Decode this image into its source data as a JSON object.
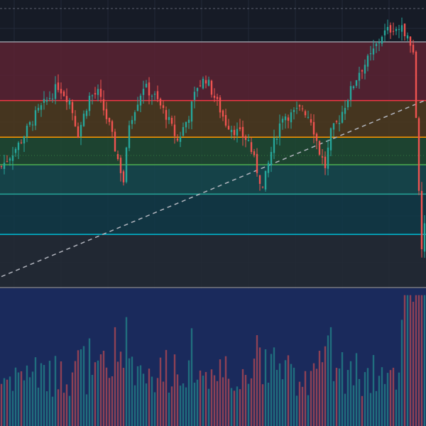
{
  "chart_data": {
    "type": "candlestick",
    "title": "",
    "xlabel": "",
    "ylabel": "",
    "ylim": [
      0,
      100
    ],
    "candle_count": 150,
    "colors": {
      "background": "#161b26",
      "up": "#26a69a",
      "down": "#ef5350",
      "trendline": "#b2b5be",
      "volume_panel": "#1a2a5c"
    },
    "trendline": {
      "start": [
        0,
        36
      ],
      "end": [
        149,
        84
      ],
      "style": "dashed"
    },
    "fib_levels": [
      {
        "value": 100,
        "line_color": "#9598a1",
        "band_color": "#5b2233"
      },
      {
        "value": 84,
        "line_color": "#f23645",
        "band_color": "#4d3a1e"
      },
      {
        "value": 74,
        "line_color": "#ff9800",
        "band_color": "#1e4a33"
      },
      {
        "value": 66.5,
        "line_color": "#4caf50",
        "band_color": "#15494f"
      },
      {
        "value": 58.5,
        "line_color": "#26a69a",
        "band_color": "#103a48"
      },
      {
        "value": 47.5,
        "line_color": "#00bcd4",
        "band_color": "#232a36"
      },
      {
        "value": 33,
        "line_color": "#787b86",
        "band_color": null
      }
    ],
    "close_path": [
      [
        0,
        66
      ],
      [
        6,
        72
      ],
      [
        12,
        80
      ],
      [
        18,
        86
      ],
      [
        20,
        88
      ],
      [
        24,
        84
      ],
      [
        27,
        75
      ],
      [
        31,
        85
      ],
      [
        34,
        86
      ],
      [
        38,
        77
      ],
      [
        43,
        62
      ],
      [
        45,
        78
      ],
      [
        50,
        88
      ],
      [
        54,
        85
      ],
      [
        58,
        80
      ],
      [
        62,
        73
      ],
      [
        66,
        80
      ],
      [
        69,
        88
      ],
      [
        72,
        90
      ],
      [
        75,
        85
      ],
      [
        79,
        78
      ],
      [
        82,
        76
      ],
      [
        87,
        73
      ],
      [
        90,
        65
      ],
      [
        92,
        60
      ],
      [
        95,
        70
      ],
      [
        99,
        80
      ],
      [
        102,
        80
      ],
      [
        106,
        82
      ],
      [
        109,
        79
      ],
      [
        112,
        70
      ],
      [
        114,
        66
      ],
      [
        116,
        75
      ],
      [
        119,
        79
      ],
      [
        122,
        85
      ],
      [
        126,
        92
      ],
      [
        130,
        96
      ],
      [
        134,
        102
      ],
      [
        138,
        104
      ],
      [
        142,
        103
      ],
      [
        145,
        97
      ],
      [
        146,
        80
      ],
      [
        147,
        58
      ],
      [
        148,
        42
      ],
      [
        149,
        50
      ]
    ]
  }
}
